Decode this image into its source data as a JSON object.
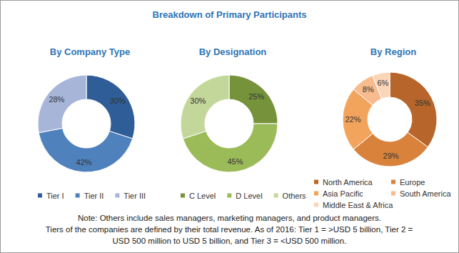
{
  "title": "Breakdown of Primary Participants",
  "chart_data": [
    {
      "type": "pie",
      "title": "By Company Type",
      "categories": [
        "Tier I",
        "Tier II",
        "Tier III"
      ],
      "values": [
        30,
        42,
        28
      ],
      "value_labels": [
        "30%",
        "42%",
        "28%"
      ],
      "colors": [
        "#2f5d97",
        "#4f81bd",
        "#a7b6d8"
      ],
      "data_labels": true,
      "legend": "bottom"
    },
    {
      "type": "pie",
      "title": "By Designation",
      "categories": [
        "C Level",
        "D Level",
        "Others"
      ],
      "values": [
        25,
        45,
        30
      ],
      "value_labels": [
        "25%",
        "45%",
        "30%"
      ],
      "colors": [
        "#76933c",
        "#9bbb59",
        "#c4d79b"
      ],
      "data_labels": true,
      "legend": "bottom"
    },
    {
      "type": "pie",
      "title": "By Region",
      "categories": [
        "North America",
        "Europe",
        "Asia Pacific",
        "South America",
        "Middle East & Africa"
      ],
      "values": [
        35,
        29,
        22,
        8,
        6
      ],
      "value_labels": [
        "35%",
        "29%",
        "22%",
        "8%",
        "6%"
      ],
      "colors": [
        "#b7652a",
        "#d9823b",
        "#f3a45c",
        "#f7bb8d",
        "#fbd5b7"
      ],
      "data_labels": true,
      "legend": "bottom"
    }
  ],
  "notes": [
    "Note: Others include sales managers, marketing managers, and product managers.",
    "Tiers of the companies are defined by their total revenue. As of 2016: Tier 1 = >USD 5 billion, Tier 2 =",
    "USD 500 million to USD 5 billion, and Tier 3 = <USD 500 million."
  ]
}
